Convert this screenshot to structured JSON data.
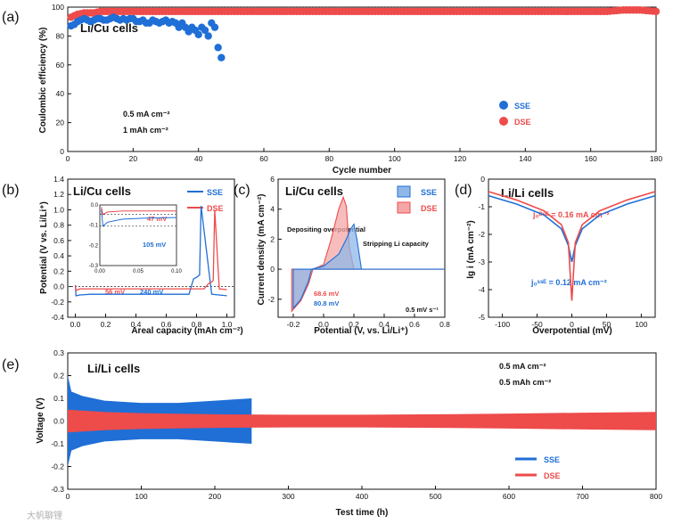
{
  "colors": {
    "sse": "#1f6fd6",
    "dse": "#ee4b4b",
    "sse_fill": "#8fb7e8",
    "dse_fill": "#f4a7a7"
  },
  "watermark": "大帆聊锂",
  "chart_data": [
    {
      "id": "a",
      "panel_label": "(a)",
      "type": "scatter",
      "title": "Li/Cu cells",
      "xlabel": "Cycle number",
      "ylabel": "Coulombic efficiency (%)",
      "xlim": [
        0,
        180
      ],
      "ylim": [
        0,
        100
      ],
      "xticks": [
        0,
        20,
        40,
        60,
        80,
        100,
        120,
        140,
        160,
        180
      ],
      "yticks": [
        0,
        20,
        40,
        60,
        80,
        100
      ],
      "conditions": [
        "0.5 mA cm⁻²",
        "1 mAh cm⁻²"
      ],
      "legend": [
        "SSE",
        "DSE"
      ],
      "series": [
        {
          "name": "SSE",
          "x": [
            1,
            2,
            3,
            4,
            5,
            6,
            7,
            8,
            9,
            10,
            11,
            12,
            13,
            14,
            15,
            16,
            17,
            18,
            19,
            20,
            21,
            22,
            23,
            24,
            25,
            26,
            27,
            28,
            29,
            30,
            31,
            32,
            33,
            34,
            35,
            36,
            37,
            38,
            39,
            40,
            41,
            42,
            43,
            44,
            45,
            46,
            47
          ],
          "y": [
            87,
            88,
            90,
            91,
            92,
            91,
            90,
            91,
            92,
            92,
            91,
            91,
            92,
            93,
            92,
            91,
            92,
            91,
            92,
            92,
            90,
            90,
            91,
            89,
            89,
            91,
            90,
            89,
            90,
            91,
            89,
            90,
            89,
            86,
            89,
            86,
            83,
            86,
            84,
            81,
            86,
            84,
            80,
            89,
            86,
            72,
            65
          ]
        },
        {
          "name": "DSE",
          "x": [
            1,
            3,
            5,
            8,
            10,
            15,
            20,
            25,
            30,
            35,
            40,
            45,
            50,
            55,
            60,
            65,
            70,
            75,
            80,
            85,
            90,
            95,
            100,
            105,
            110,
            115,
            120,
            125,
            130,
            135,
            140,
            145,
            150,
            155,
            160,
            165,
            170,
            175,
            180
          ],
          "y": [
            93,
            95,
            96,
            96,
            97,
            97,
            97,
            97,
            97,
            97,
            97,
            97,
            97,
            97,
            97,
            97,
            97,
            97,
            97,
            97,
            97,
            97,
            97,
            97,
            97,
            97,
            97,
            97,
            97,
            97,
            97,
            97,
            97,
            97,
            97,
            97,
            98,
            98,
            97
          ]
        }
      ]
    },
    {
      "id": "b",
      "panel_label": "(b)",
      "type": "line",
      "title": "Li/Cu cells",
      "xlabel": "Areal capacity (mAh cm⁻²)",
      "ylabel": "Potential (V vs. Li/Li⁺)",
      "xlim": [
        -0.05,
        1.05
      ],
      "ylim": [
        -0.4,
        1.4
      ],
      "xticks": [
        0.0,
        0.2,
        0.4,
        0.6,
        0.8,
        1.0
      ],
      "yticks": [
        -0.4,
        -0.2,
        0.0,
        0.2,
        0.4,
        0.6,
        0.8,
        1.0,
        1.2,
        1.4
      ],
      "legend": [
        "SSE",
        "DSE"
      ],
      "annotations": [
        "56 mV",
        "240 mV"
      ],
      "inset": {
        "xlim": [
          0.0,
          0.1
        ],
        "ylim": [
          -0.3,
          0.0
        ],
        "xticks": [
          0.0,
          0.05,
          0.1
        ],
        "xtick_labels": [
          "0.00",
          "0.05",
          "0.10"
        ],
        "yticks": [
          0.0,
          -0.1,
          -0.2,
          -0.3
        ],
        "ytick_labels": [
          "0.0",
          "-0.1",
          "-0.2",
          "-0.3"
        ],
        "annotations": [
          "47 mV",
          "105 mV"
        ]
      },
      "series": [
        {
          "name": "SSE",
          "x": [
            0,
            0.005,
            0.03,
            0.1,
            0.4,
            0.75,
            0.78,
            0.8,
            0.82,
            0.83,
            0.9,
            1.0
          ],
          "y": [
            0.02,
            -0.12,
            -0.11,
            -0.1,
            -0.1,
            -0.1,
            0.1,
            0.12,
            0.15,
            1.05,
            -0.1,
            -0.12
          ]
        },
        {
          "name": "DSE",
          "x": [
            0,
            0.005,
            0.03,
            0.1,
            0.4,
            0.85,
            0.88,
            0.9,
            0.91,
            0.92,
            0.95,
            1.0
          ],
          "y": [
            0.01,
            -0.05,
            -0.03,
            -0.03,
            -0.03,
            -0.03,
            0.04,
            0.06,
            0.08,
            1.0,
            -0.03,
            -0.04
          ]
        }
      ]
    },
    {
      "id": "c",
      "panel_label": "(c)",
      "type": "area",
      "title": "Li/Cu cells",
      "xlabel": "Potential (V, vs. Li/Li⁺)",
      "ylabel": "Current density (mA cm⁻²)",
      "xlim": [
        -0.3,
        0.8
      ],
      "ylim": [
        -3.2,
        6
      ],
      "xticks": [
        -0.2,
        0.0,
        0.2,
        0.4,
        0.6,
        0.8
      ],
      "yticks": [
        -2,
        0,
        2,
        4,
        6
      ],
      "legend": [
        "SSE",
        "DSE"
      ],
      "annotations": [
        "Depositing overpotential",
        "Stripping Li capacity",
        "68.6 mV",
        "80.8 mV",
        "0.5 mV s⁻¹"
      ],
      "series": [
        {
          "name": "SSE",
          "x": [
            -0.2,
            -0.15,
            -0.1,
            -0.08,
            0.0,
            0.1,
            0.15,
            0.18,
            0.2,
            0.22,
            0.25,
            0.8
          ],
          "y": [
            -2.6,
            -2.0,
            -0.8,
            0,
            0.2,
            1.0,
            2.0,
            2.7,
            3.0,
            2.0,
            0,
            0
          ]
        },
        {
          "name": "DSE",
          "x": [
            -0.21,
            -0.15,
            -0.1,
            -0.07,
            0.0,
            0.05,
            0.1,
            0.13,
            0.15,
            0.17,
            0.2,
            0.8
          ],
          "y": [
            -2.8,
            -2.1,
            -1.0,
            0,
            0.3,
            2.0,
            4.0,
            4.8,
            4.2,
            1.5,
            0,
            0
          ]
        }
      ]
    },
    {
      "id": "d",
      "panel_label": "(d)",
      "type": "line",
      "title": "Li/Li cells",
      "xlabel": "Overpotential (mV)",
      "ylabel": "lg i (mA cm⁻²)",
      "xlim": [
        -120,
        120
      ],
      "ylim": [
        -5,
        0
      ],
      "xticks": [
        -100,
        -50,
        0,
        50,
        100
      ],
      "yticks": [
        0,
        -1,
        -2,
        -3,
        -4,
        -5
      ],
      "annotations": [
        "j₀ᴰˢᴱ = 0.16 mA cm⁻²",
        "j₀ˢˢᴱ = 0.12 mA cm⁻²"
      ],
      "series": [
        {
          "name": "SSE",
          "x": [
            -120,
            -80,
            -40,
            -15,
            -5,
            0,
            5,
            15,
            40,
            80,
            120
          ],
          "y": [
            -0.6,
            -0.9,
            -1.3,
            -1.8,
            -2.4,
            -3.0,
            -2.4,
            -1.8,
            -1.3,
            -0.9,
            -0.6
          ]
        },
        {
          "name": "DSE",
          "x": [
            -120,
            -80,
            -40,
            -15,
            -5,
            0,
            5,
            15,
            40,
            80,
            120
          ],
          "y": [
            -0.45,
            -0.75,
            -1.15,
            -1.65,
            -2.3,
            -4.4,
            -2.3,
            -1.65,
            -1.15,
            -0.75,
            -0.45
          ]
        }
      ]
    },
    {
      "id": "e",
      "panel_label": "(e)",
      "type": "line",
      "title": "Li/Li cells",
      "xlabel": "Test time (h)",
      "ylabel": "Voltage (V)",
      "xlim": [
        0,
        800
      ],
      "ylim": [
        -0.3,
        0.3
      ],
      "xticks": [
        0,
        100,
        200,
        300,
        400,
        500,
        600,
        700,
        800
      ],
      "yticks": [
        -0.3,
        -0.2,
        -0.1,
        0.0,
        0.1,
        0.2,
        0.3
      ],
      "conditions": [
        "0.5 mA cm⁻²",
        "0.5 mAh cm⁻²"
      ],
      "legend": [
        "SSE",
        "DSE"
      ],
      "series": [
        {
          "name": "SSE",
          "time_h": [
            0,
            5,
            20,
            50,
            100,
            150,
            200,
            250
          ],
          "amplitude_V": [
            0.2,
            0.13,
            0.11,
            0.09,
            0.08,
            0.08,
            0.09,
            0.1
          ]
        },
        {
          "name": "DSE",
          "time_h": [
            0,
            50,
            100,
            200,
            300,
            400,
            500,
            600,
            700,
            800
          ],
          "amplitude_V": [
            0.05,
            0.04,
            0.035,
            0.03,
            0.028,
            0.028,
            0.03,
            0.033,
            0.037,
            0.04
          ]
        }
      ]
    }
  ]
}
